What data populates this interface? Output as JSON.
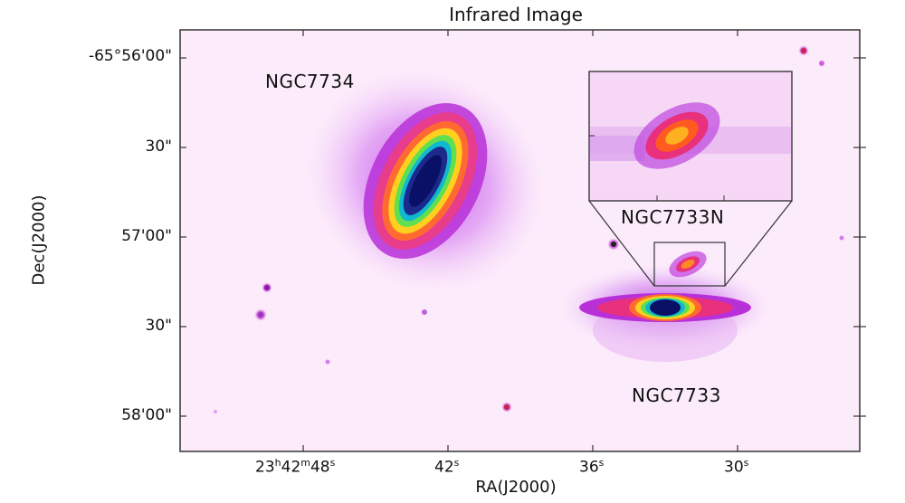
{
  "title": "Infrared Image",
  "axes": {
    "ylabel": "Dec(J2000)",
    "xlabel": "RA(J2000)",
    "yticks": [
      "-65°56'00\"",
      "30\"",
      "57'00\"",
      "30\"",
      "58'00\""
    ],
    "xticks": [
      {
        "main": "23",
        "h": "h",
        "m1": "42",
        "m": "m",
        "s1": "48",
        "s": "s"
      },
      {
        "val": "42",
        "s": "s"
      },
      {
        "val": "36",
        "s": "s"
      },
      {
        "val": "30",
        "s": "s"
      }
    ]
  },
  "labels": {
    "galaxy1": "NGC7734",
    "galaxy2": "NGC7733",
    "inset": "NGC7733N"
  },
  "colors": {
    "background": "#fcecfb",
    "frame": "#333333"
  }
}
